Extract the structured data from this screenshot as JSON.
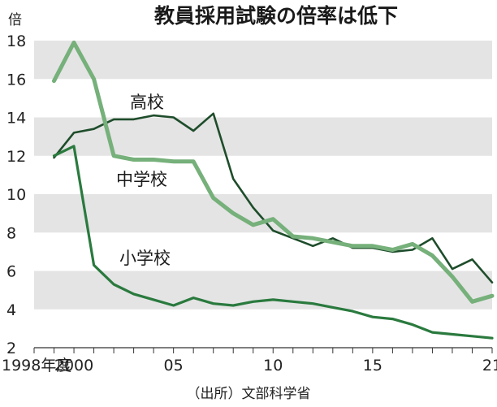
{
  "chart_data": {
    "type": "line",
    "title": "教員採用試験の倍率は低下",
    "ylabel": "倍",
    "source": "（出所）文部科学省",
    "ylim": [
      2,
      18
    ],
    "xlim": [
      1998,
      2021
    ],
    "y_ticks": [
      2,
      4,
      6,
      8,
      10,
      12,
      14,
      16,
      18
    ],
    "x_ticks": [
      {
        "value": 1998,
        "label": "1998年度"
      },
      {
        "value": 2000,
        "label": "2000"
      },
      {
        "value": 2005,
        "label": "05"
      },
      {
        "value": 2010,
        "label": "10"
      },
      {
        "value": 2015,
        "label": "15"
      },
      {
        "value": 2021,
        "label": "21"
      }
    ],
    "grid": "horizontal bands",
    "x": [
      1998,
      1999,
      2000,
      2001,
      2002,
      2003,
      2004,
      2005,
      2006,
      2007,
      2008,
      2009,
      2010,
      2011,
      2012,
      2013,
      2014,
      2015,
      2016,
      2017,
      2018,
      2019,
      2020,
      2021
    ],
    "series": [
      {
        "name": "高校",
        "color": "#1e4d2b",
        "values": [
          null,
          11.9,
          13.2,
          13.4,
          13.9,
          13.9,
          14.1,
          14.0,
          13.3,
          14.2,
          10.8,
          9.3,
          8.1,
          7.7,
          7.3,
          7.7,
          7.2,
          7.2,
          7.0,
          7.1,
          7.7,
          6.1,
          6.6,
          5.4
        ]
      },
      {
        "name": "中学校",
        "color": "#76b07a",
        "values": [
          null,
          15.9,
          17.9,
          16.0,
          12.0,
          11.8,
          11.8,
          11.7,
          11.7,
          9.8,
          9.0,
          8.4,
          8.7,
          7.8,
          7.7,
          7.5,
          7.3,
          7.3,
          7.1,
          7.4,
          6.8,
          5.7,
          4.4,
          4.7
        ]
      },
      {
        "name": "小学校",
        "color": "#2a7a3e",
        "values": [
          null,
          12.0,
          12.5,
          6.3,
          5.3,
          4.8,
          4.5,
          4.2,
          4.6,
          4.3,
          4.2,
          4.4,
          4.5,
          4.4,
          4.3,
          4.1,
          3.9,
          3.6,
          3.5,
          3.2,
          2.8,
          2.7,
          2.6,
          2.5
        ]
      }
    ]
  }
}
